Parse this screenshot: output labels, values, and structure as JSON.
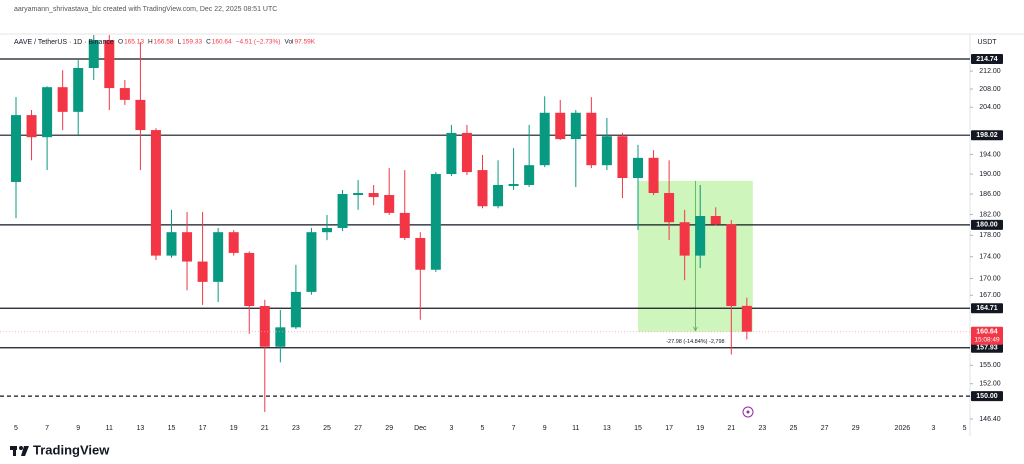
{
  "header": "aaryamann_shrivastava_blc created with TradingView.com, Dec 22, 2025 08:51 UTC",
  "chart_data": {
    "type": "candlestick",
    "title": "AAVE / TetherUS · 1D · Binance",
    "ohlc_keys": [
      "O",
      "H",
      "L",
      "C"
    ],
    "change": "−4.51 (−2.73%)",
    "volume_key": "Vol",
    "volume": "97.59K",
    "y_unit": "USDT",
    "categories": [
      "5",
      null,
      "7",
      null,
      "9",
      null,
      "11",
      null,
      "13",
      null,
      "15",
      null,
      "17",
      null,
      "19",
      null,
      "21",
      null,
      "23",
      null,
      "25",
      null,
      "27",
      null,
      "29",
      null,
      "Dec",
      null,
      "3",
      null,
      "5",
      null,
      "7",
      null,
      "9",
      null,
      "11",
      null,
      "13",
      null,
      "15",
      null,
      "17",
      null,
      "19",
      null,
      "21",
      null,
      "23",
      null,
      "25",
      null,
      "27",
      null,
      "29",
      null,
      null,
      "2026",
      null,
      "3",
      null,
      "5"
    ],
    "open": [
      188.4,
      202.3,
      197.6,
      208.4,
      203.0,
      212.7,
      219.1,
      208.2,
      205.6,
      199.1,
      174.2,
      178.6,
      173.1,
      169.4,
      178.6,
      174.7,
      165.1,
      158.1,
      161.4,
      167.6,
      178.6,
      179.4,
      185.8,
      186.2,
      185.8,
      182.3,
      177.5,
      171.6,
      190.0,
      198.5,
      190.8,
      183.6,
      187.6,
      187.8,
      191.8,
      202.8,
      197.2,
      202.8,
      191.8,
      197.8,
      189.2,
      193.3,
      186.2,
      180.5,
      174.2,
      181.7,
      180.1,
      165.13,
      null,
      null,
      null,
      null,
      null,
      null,
      null,
      null,
      null,
      null,
      null,
      null,
      null,
      null
    ],
    "high": [
      206.2,
      203.4,
      208.6,
      212.2,
      214.5,
      220.3,
      220.3,
      210.0,
      218.6,
      199.5,
      182.9,
      182.5,
      182.5,
      179.4,
      179.0,
      175.0,
      166.2,
      164.4,
      172.5,
      179.4,
      181.9,
      186.8,
      188.8,
      187.8,
      191.2,
      190.8,
      178.6,
      190.4,
      200.2,
      200.2,
      193.9,
      192.8,
      195.3,
      200.2,
      206.4,
      205.6,
      203.4,
      206.2,
      201.7,
      198.5,
      196.0,
      194.9,
      192.8,
      182.9,
      187.8,
      183.4,
      180.9,
      166.58,
      null,
      null,
      null,
      null,
      null,
      null,
      null,
      null,
      null,
      null,
      null,
      null,
      null,
      null
    ],
    "low": [
      181.3,
      192.8,
      190.8,
      199.1,
      198.1,
      210.0,
      203.4,
      204.5,
      190.8,
      173.4,
      173.8,
      167.9,
      165.3,
      165.8,
      174.2,
      160.3,
      147.5,
      155.5,
      161.1,
      167.1,
      177.1,
      178.8,
      182.9,
      183.8,
      181.9,
      177.1,
      162.7,
      171.2,
      189.6,
      189.8,
      183.2,
      183.2,
      186.8,
      187.4,
      191.4,
      197.0,
      187.4,
      191.2,
      190.8,
      185.2,
      179.0,
      185.8,
      177.1,
      169.7,
      171.9,
      179.9,
      156.8,
      159.33,
      null,
      null,
      null,
      null,
      null,
      null,
      null,
      null,
      null,
      null,
      null,
      null,
      null,
      null
    ],
    "close": [
      202.3,
      197.6,
      208.4,
      203.0,
      212.7,
      219.1,
      208.2,
      205.6,
      199.1,
      174.2,
      178.6,
      173.1,
      169.4,
      178.6,
      174.7,
      165.1,
      158.1,
      161.4,
      167.6,
      178.6,
      179.4,
      186.0,
      186.2,
      185.4,
      182.3,
      177.5,
      171.6,
      190.0,
      198.5,
      190.4,
      183.6,
      187.8,
      188.0,
      191.8,
      202.8,
      197.2,
      202.8,
      191.8,
      197.8,
      189.2,
      193.3,
      186.2,
      180.5,
      174.2,
      181.7,
      180.1,
      165.1,
      160.64,
      null,
      null,
      null,
      null,
      null,
      null,
      null,
      null,
      null,
      null,
      null,
      null,
      null,
      null
    ],
    "up_color": "#089981",
    "down_color": "#f23645",
    "log_scale": true,
    "ylim": [
      145.0,
      219.6
    ],
    "yticks": [
      {
        "value": 146.4,
        "label": "146.40"
      },
      {
        "value": 152,
        "label": "152.00"
      },
      {
        "value": 155,
        "label": "155.00"
      },
      {
        "value": 167,
        "label": "167.00"
      },
      {
        "value": 170,
        "label": "170.00"
      },
      {
        "value": 174,
        "label": "174.00"
      },
      {
        "value": 178,
        "label": "178.00"
      },
      {
        "value": 182,
        "label": "182.00"
      },
      {
        "value": 186,
        "label": "186.00"
      },
      {
        "value": 190,
        "label": "190.00"
      },
      {
        "value": 194,
        "label": "194.00"
      },
      {
        "value": 204,
        "label": "204.00"
      },
      {
        "value": 208,
        "label": "208.00"
      },
      {
        "value": 212,
        "label": "212.00"
      }
    ],
    "levels": [
      {
        "value": 214.74,
        "label": "214.74",
        "style": "solid"
      },
      {
        "value": 198.02,
        "label": "198.02",
        "style": "solid"
      },
      {
        "value": 180,
        "label": "180.00",
        "style": "solid"
      },
      {
        "value": 164.71,
        "label": "164.71",
        "style": "solid"
      },
      {
        "value": 157.93,
        "label": "157.93",
        "style": "solid"
      },
      {
        "value": 150,
        "label": "150.00",
        "style": "dashed"
      }
    ],
    "countdown": "15:08:49",
    "measure": {
      "from": 188.62,
      "to": 160.64,
      "label": "-27.98 (-14.84%) -2,798",
      "color": "#b9f2a0"
    }
  },
  "footer": "TradingView"
}
